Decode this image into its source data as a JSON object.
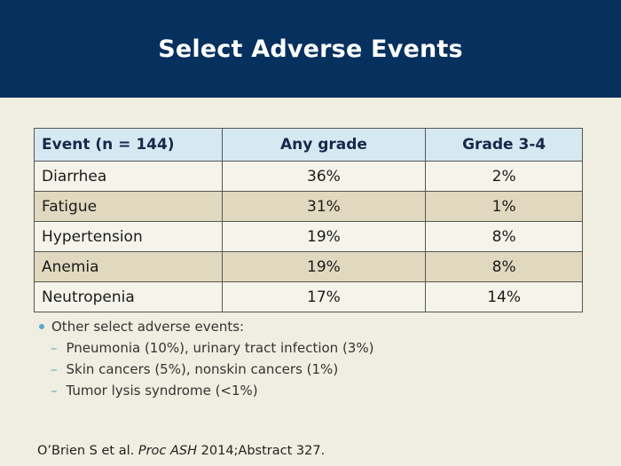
{
  "slide": {
    "title": "Select Adverse Events"
  },
  "table": {
    "headers": [
      "Event (n = 144)",
      "Any grade",
      "Grade 3-4"
    ],
    "rows": [
      [
        "Diarrhea",
        "36%",
        "2%"
      ],
      [
        "Fatigue",
        "31%",
        "1%"
      ],
      [
        "Hypertension",
        "19%",
        "8%"
      ],
      [
        "Anemia",
        "19%",
        "8%"
      ],
      [
        "Neutropenia",
        "17%",
        "14%"
      ]
    ]
  },
  "notes": {
    "bullet": "Other select adverse events:",
    "items": [
      "Pneumonia (10%), urinary tract infection (3%)",
      "Skin cancers (5%), nonskin cancers (1%)",
      "Tumor lysis syndrome (<1%)"
    ]
  },
  "citation": {
    "authors": "O’Brien S et al.",
    "journal": "Proc ASH",
    "detail": "2014;Abstract 327."
  },
  "colors": {
    "header_bg": "#06305e",
    "page_bg": "#f0eee0",
    "table_header_bg": "#d6e9f2",
    "row_alt_bg": "#e1d9bf",
    "bullet_accent": "#5aa9c8"
  }
}
